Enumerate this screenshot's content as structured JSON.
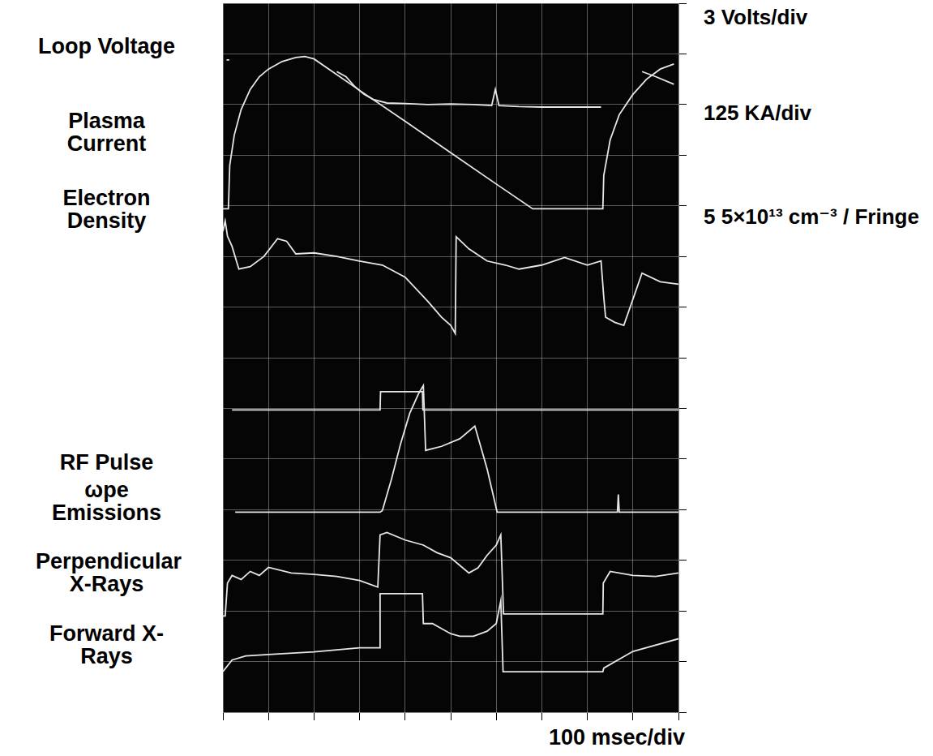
{
  "chart_data": {
    "type": "line",
    "xlabel": "100 msec/div",
    "annotations": [
      "3 Volts/div",
      "125 KA/div",
      "5 5×10¹³ cm⁻³ / Fringe"
    ],
    "xlim": [
      0,
      1000
    ],
    "xticks": [
      0,
      100,
      200,
      300,
      400,
      500,
      600,
      700,
      800,
      900,
      1000
    ],
    "ylim": [
      0,
      14
    ],
    "yticks": [
      0,
      1,
      2,
      3,
      4,
      5,
      6,
      7,
      8,
      9,
      10,
      11,
      12,
      13,
      14
    ],
    "grid": true,
    "tick_labels": false,
    "series": [
      {
        "name": "Loop Voltage",
        "color": "#e6e6e6",
        "x": [
          8,
          14,
          100,
          250,
          270,
          290,
          310,
          330,
          360,
          400,
          450,
          500,
          550,
          590,
          598,
          606,
          650,
          700,
          750,
          830,
          870,
          920,
          950,
          990
        ],
        "values": [
          12.88,
          12.88,
          null,
          12.65,
          12.55,
          12.35,
          12.2,
          12.1,
          12.03,
          12.02,
          12.0,
          12.01,
          12.0,
          11.98,
          12.3,
          11.98,
          11.96,
          11.95,
          11.95,
          11.95,
          null,
          12.65,
          12.55,
          12.4
        ]
      },
      {
        "name": "Plasma Current",
        "color": "#e6e6e6",
        "x": [
          0,
          12,
          15,
          25,
          40,
          60,
          80,
          100,
          130,
          160,
          180,
          200,
          300,
          400,
          500,
          600,
          680,
          760,
          830,
          834,
          836,
          850,
          870,
          900,
          930,
          960,
          990
        ],
        "values": [
          9.94,
          9.94,
          10.8,
          11.4,
          11.9,
          12.3,
          12.55,
          12.7,
          12.85,
          12.93,
          12.95,
          12.9,
          12.28,
          11.67,
          11.05,
          10.43,
          9.94,
          9.94,
          9.94,
          9.94,
          10.6,
          11.3,
          11.8,
          12.2,
          12.5,
          12.7,
          12.8
        ]
      },
      {
        "name": "Electron Density",
        "color": "#e6e6e6",
        "x": [
          0,
          5,
          10,
          20,
          35,
          60,
          90,
          120,
          140,
          160,
          200,
          250,
          300,
          350,
          400,
          450,
          480,
          500,
          510,
          512,
          540,
          580,
          620,
          650,
          700,
          750,
          800,
          830,
          836,
          840,
          860,
          880,
          920,
          960,
          1000
        ],
        "values": [
          9.5,
          9.7,
          9.4,
          9.2,
          8.75,
          8.8,
          9.0,
          9.35,
          9.3,
          9.05,
          9.07,
          9.0,
          8.91,
          8.83,
          8.59,
          8.11,
          7.8,
          7.64,
          7.48,
          9.39,
          9.15,
          8.91,
          8.83,
          8.75,
          8.83,
          8.98,
          8.83,
          8.91,
          8.2,
          7.8,
          7.7,
          7.64,
          8.67,
          8.5,
          8.45
        ]
      },
      {
        "name": "RF Pulse",
        "color": "#e6e6e6",
        "x": [
          20,
          345,
          346,
          438,
          439,
          1000
        ],
        "values": [
          5.97,
          5.97,
          6.33,
          6.33,
          5.97,
          5.97
        ]
      },
      {
        "name": "ωpe Emissions",
        "color": "#e6e6e6",
        "x": [
          27,
          345,
          350,
          370,
          390,
          410,
          430,
          440,
          445,
          480,
          520,
          553,
          580,
          602,
          866,
          868,
          870,
          1000
        ],
        "values": [
          3.95,
          3.95,
          3.98,
          4.6,
          5.3,
          5.9,
          6.3,
          6.45,
          5.17,
          5.25,
          5.4,
          5.65,
          4.8,
          3.95,
          3.95,
          4.3,
          3.95,
          3.95
        ]
      },
      {
        "name": "Perpendicular X-Rays",
        "color": "#e6e6e6",
        "x": [
          0,
          5,
          10,
          20,
          40,
          60,
          80,
          100,
          150,
          200,
          250,
          300,
          340,
          345,
          360,
          400,
          440,
          470,
          500,
          520,
          540,
          560,
          580,
          600,
          610,
          616,
          700,
          834,
          835,
          850,
          900,
          950,
          1000
        ],
        "values": [
          1.9,
          1.9,
          2.55,
          2.7,
          2.62,
          2.78,
          2.7,
          2.86,
          2.75,
          2.72,
          2.68,
          2.6,
          2.47,
          3.5,
          3.55,
          3.4,
          3.3,
          3.15,
          3.05,
          2.9,
          2.75,
          2.85,
          3.1,
          3.3,
          3.5,
          1.94,
          1.94,
          1.94,
          2.55,
          2.78,
          2.7,
          2.68,
          2.75
        ]
      },
      {
        "name": "Forward X-Rays",
        "color": "#e6e6e6",
        "x": [
          0,
          20,
          50,
          100,
          200,
          300,
          344,
          345,
          438,
          440,
          460,
          480,
          500,
          520,
          550,
          580,
          600,
          610,
          615,
          700,
          834,
          836,
          900,
          1000
        ],
        "values": [
          0.8,
          1.03,
          1.11,
          1.14,
          1.19,
          1.27,
          1.27,
          2.34,
          2.34,
          1.75,
          1.75,
          1.65,
          1.55,
          1.5,
          1.5,
          1.6,
          1.75,
          2.2,
          0.8,
          0.8,
          0.8,
          0.87,
          1.2,
          1.45
        ]
      }
    ]
  }
}
